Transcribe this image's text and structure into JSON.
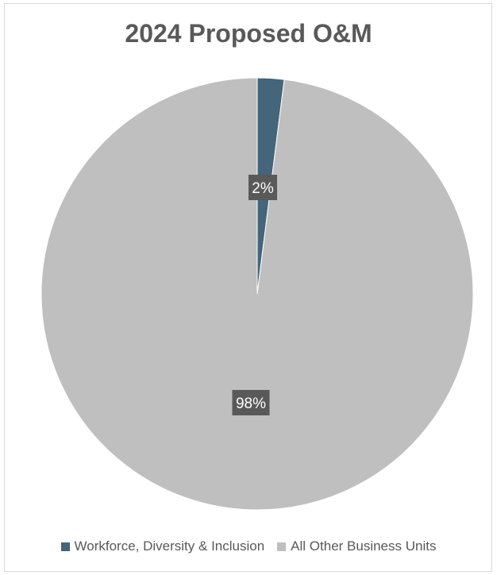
{
  "chart_data": {
    "type": "pie",
    "title": "2024 Proposed O&M",
    "slices": [
      {
        "name": "Workforce, Diversity & Inclusion",
        "value": 2,
        "label": "2%",
        "color": "#44657a"
      },
      {
        "name": "All Other Business Units",
        "value": 98,
        "label": "98%",
        "color": "#bfbfbf"
      }
    ],
    "legend_position": "bottom",
    "label_box_color": "#595959",
    "label_text_color": "#ffffff"
  }
}
